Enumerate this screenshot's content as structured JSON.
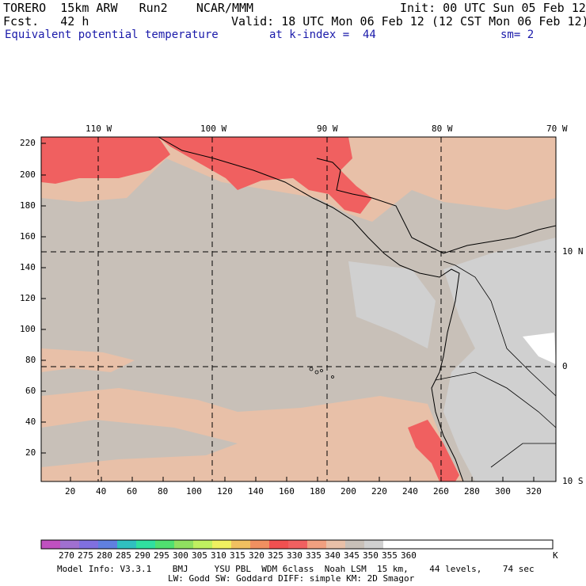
{
  "header": {
    "model": "TORERO  15km ARW   Run2    NCAR/MMM",
    "init": "Init: 00 UTC Sun 05 Feb 12",
    "fcst": "Fcst.   42 h",
    "valid": "Valid: 18 UTC Mon 06 Feb 12 (12 CST Mon 06 Feb 12)",
    "field": "Equivalent potential temperature",
    "level": "at k-index =  44",
    "smooth": "sm= 2"
  },
  "map": {
    "top_lon_labels": [
      "110 W",
      "100 W",
      "90 W",
      "80 W",
      "70 W"
    ],
    "right_lat_labels": [
      "10 N",
      "0",
      "10 S"
    ],
    "left_ticks": [
      "220",
      "200",
      "180",
      "160",
      "140",
      "120",
      "100",
      "80",
      "60",
      "40",
      "20"
    ],
    "bottom_ticks": [
      "20",
      "40",
      "60",
      "80",
      "100",
      "120",
      "140",
      "160",
      "180",
      "200",
      "220",
      "240",
      "260",
      "280",
      "300",
      "320"
    ]
  },
  "colorbar": {
    "labels": [
      "270",
      "275",
      "280",
      "285",
      "290",
      "295",
      "300",
      "305",
      "310",
      "315",
      "320",
      "325",
      "330",
      "335",
      "340",
      "345",
      "350",
      "355",
      "360"
    ],
    "unit": "K",
    "colors": [
      "#c050c0",
      "#a070d0",
      "#8070e0",
      "#6080e0",
      "#30c0c0",
      "#30e0a0",
      "#50e070",
      "#90e060",
      "#c0f060",
      "#f0f060",
      "#f0c060",
      "#f09060",
      "#f05050",
      "#f06060",
      "#f0a080",
      "#e8c0a8",
      "#c8c0b8",
      "#d0d0d0",
      "#ffffff"
    ]
  },
  "footer": {
    "line1": "Model Info: V3.3.1    BMJ     YSU PBL  WDM 6class  Noah LSM  15 km,    44 levels,    74 sec",
    "line2": "LW: Godd SW: Goddard DIFF: simple KM: 2D Smagor"
  }
}
